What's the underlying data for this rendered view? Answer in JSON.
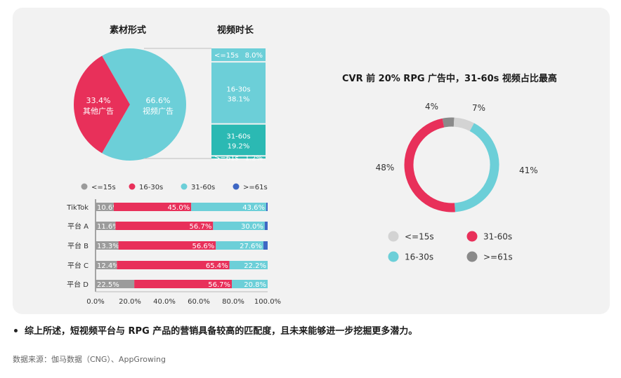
{
  "colors": {
    "grey": "#9b9b9b",
    "red": "#e8305a",
    "teal": "#6ccfd8",
    "teal_dark": "#2bb9b3",
    "blue": "#3e67c4",
    "light_grey": "#d3d3d3",
    "dark_grey": "#8a8a8a"
  },
  "headings": {
    "material": "素材形式",
    "duration": "视频时长",
    "cvr": "CVR 前 20% RPG 广告中，31-60s 视频占比最高"
  },
  "chart_data": [
    {
      "type": "pie",
      "title": "素材形式",
      "slices": [
        {
          "label": "其他广告",
          "percent_text": "33.4%",
          "value": 33.4,
          "color": "#e8305a"
        },
        {
          "label": "视频广告",
          "percent_text": "66.6%",
          "value": 66.6,
          "color": "#6ccfd8"
        }
      ]
    },
    {
      "type": "bar",
      "title": "视频时长",
      "stacked": true,
      "orientation": "vertical",
      "segments": [
        {
          "label": "<=15s",
          "percent_text": "8.0%",
          "value": 8.0,
          "color": "#6ccfd8"
        },
        {
          "label": "16-30s",
          "percent_text": "38.1%",
          "value": 38.1,
          "color": "#6ccfd8"
        },
        {
          "label": "31-60s",
          "percent_text": "19.2%",
          "value": 19.2,
          "color": "#2bb9b3"
        },
        {
          "label": ">=61s",
          "percent_text": "1.2%",
          "value": 1.2,
          "color": "#2bb9b3"
        }
      ]
    },
    {
      "type": "bar",
      "orientation": "horizontal",
      "stacked": true,
      "legend": [
        "<=15s",
        "16-30s",
        "31-60s",
        ">=61s"
      ],
      "legend_colors": [
        "#9b9b9b",
        "#e8305a",
        "#6ccfd8",
        "#3e67c4"
      ],
      "categories": [
        "TikTok",
        "平台 A",
        "平台 B",
        "平台 C",
        "平台 D"
      ],
      "series": [
        {
          "name": "<=15s",
          "values": [
            10.6,
            11.6,
            13.3,
            12.4,
            22.5
          ],
          "labels": [
            "10.6%",
            "11.6%",
            "13.3%",
            "12.4%",
            "22.5%"
          ]
        },
        {
          "name": "16-30s",
          "values": [
            45.0,
            56.7,
            56.6,
            65.4,
            56.7
          ],
          "labels": [
            "45.0%",
            "56.7%",
            "56.6%",
            "65.4%",
            "56.7%"
          ]
        },
        {
          "name": "31-60s",
          "values": [
            43.6,
            30.0,
            27.6,
            22.2,
            20.8
          ],
          "labels": [
            "43.6%",
            "30.0%",
            "27.6%",
            "22.2%",
            "20.8%"
          ]
        },
        {
          "name": ">=61s",
          "values": [
            0.8,
            1.7,
            2.5,
            0.0,
            0.0
          ]
        }
      ],
      "xlim": [
        0,
        100
      ],
      "xticks": [
        "0.0%",
        "20.0%",
        "40.0%",
        "60.0%",
        "80.0%",
        "100.0%"
      ]
    },
    {
      "type": "pie",
      "donut": true,
      "title": "CVR 前 20% RPG 广告中，31-60s 视频占比最高",
      "slices": [
        {
          "label": "<=15s",
          "percent_text": "7%",
          "value": 7,
          "color": "#d3d3d3"
        },
        {
          "label": "16-30s",
          "percent_text": "41%",
          "value": 41,
          "color": "#6ccfd8"
        },
        {
          "label": "31-60s",
          "percent_text": "48%",
          "value": 48,
          "color": "#e8305a"
        },
        {
          "label": ">=61s",
          "percent_text": "4%",
          "value": 4,
          "color": "#8a8a8a"
        }
      ],
      "legend": [
        "<=15s",
        "31-60s",
        "16-30s",
        ">=61s"
      ],
      "legend_colors": [
        "#d3d3d3",
        "#e8305a",
        "#6ccfd8",
        "#8a8a8a"
      ]
    }
  ],
  "conclusion": "综上所述，短视频平台与 RPG 产品的营销具备较高的匹配度，且未来能够进一步挖掘更多潜力。",
  "source": "数据来源：伽马数据（CNG）、AppGrowing"
}
